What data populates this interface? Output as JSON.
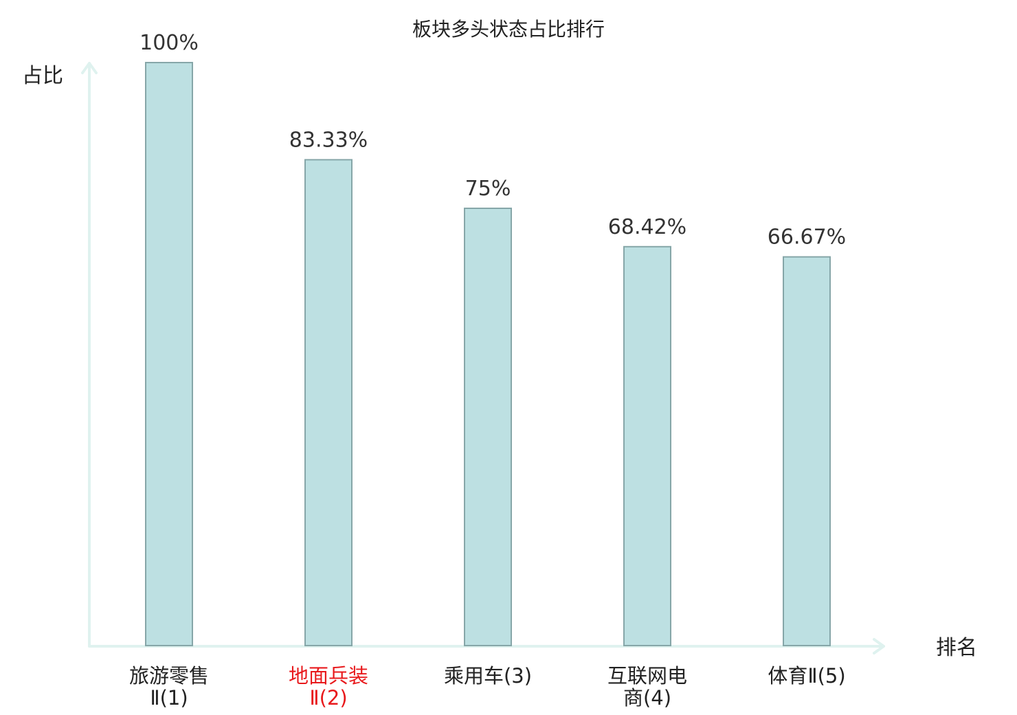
{
  "chart_data": {
    "type": "bar",
    "title": "板块多头状态占比排行",
    "ylabel": "占比",
    "xlabel": "排名",
    "ylim": [
      0,
      100
    ],
    "grid": false,
    "categories": [
      {
        "lines": [
          "旅游零售",
          "Ⅱ(1)"
        ],
        "highlight": false
      },
      {
        "lines": [
          "地面兵装",
          "Ⅱ(2)"
        ],
        "highlight": true
      },
      {
        "lines": [
          "乘用车(3)"
        ],
        "highlight": false
      },
      {
        "lines": [
          "互联网电",
          "商(4)"
        ],
        "highlight": false
      },
      {
        "lines": [
          "体育Ⅱ(5)"
        ],
        "highlight": false
      }
    ],
    "values": [
      100,
      83.33,
      75,
      68.42,
      66.67
    ],
    "value_labels": [
      "100%",
      "83.33%",
      "75%",
      "68.42%",
      "66.67%"
    ],
    "colors": {
      "bar_fill": "#bde0e2",
      "bar_edge": "#86a6a8",
      "axis": "#dff2ef",
      "highlight_text": "#e8191c"
    }
  }
}
